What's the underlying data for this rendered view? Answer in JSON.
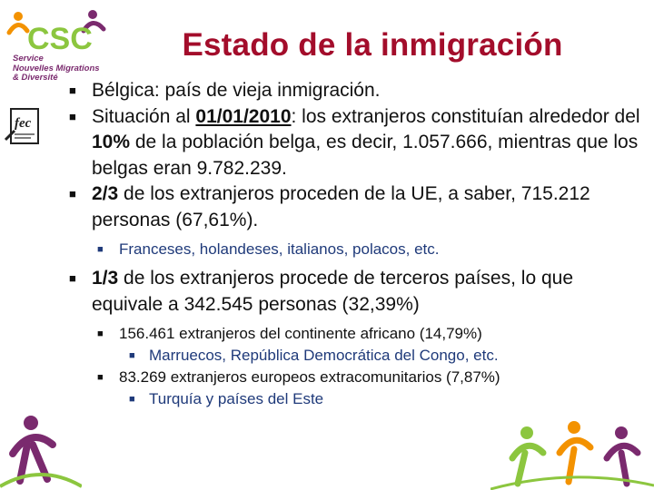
{
  "logo": {
    "letters": "CSC",
    "line1": "Service",
    "line2": "Nouvelles Migrations",
    "line3": "& Diversité",
    "fec_text": "fec"
  },
  "title": "Estado de la inmigración",
  "bullets": {
    "b1": "Bélgica: país de vieja inmigración.",
    "b2_pre": "Situación al ",
    "b2_date": "01/01/2010",
    "b2_mid": ": los extranjeros constituían alrededor del ",
    "b2_pct": "10%",
    "b2_post": " de la población belga, es decir, 1.057.666, mientras que los belgas eran 9.782.239.",
    "b3_frac": "2/3",
    "b3_post": " de los extranjeros proceden de la UE, a saber, 715.212 personas (67,61%).",
    "b3_sub": "Franceses, holandeses, italianos, polacos, etc.",
    "b4_frac": "1/3",
    "b4_post": " de los extranjeros procede de terceros países, lo que equivale a 342.545 personas (32,39%)",
    "b4_sub1": "156.461 extranjeros del continente africano (14,79%)",
    "b4_sub1_sub": "Marruecos, República Democrática del Congo, etc.",
    "b4_sub2": "83.269 extranjeros europeos extracomunitarios (7,87%)",
    "b4_sub2_sub": "Turquía y países del Este"
  },
  "colors": {
    "title": "#a30d2b",
    "sub_bullet": "#1f3a7a",
    "logo_purple": "#7a2a6e",
    "logo_green": "#8cc63f",
    "logo_orange": "#f39200"
  }
}
